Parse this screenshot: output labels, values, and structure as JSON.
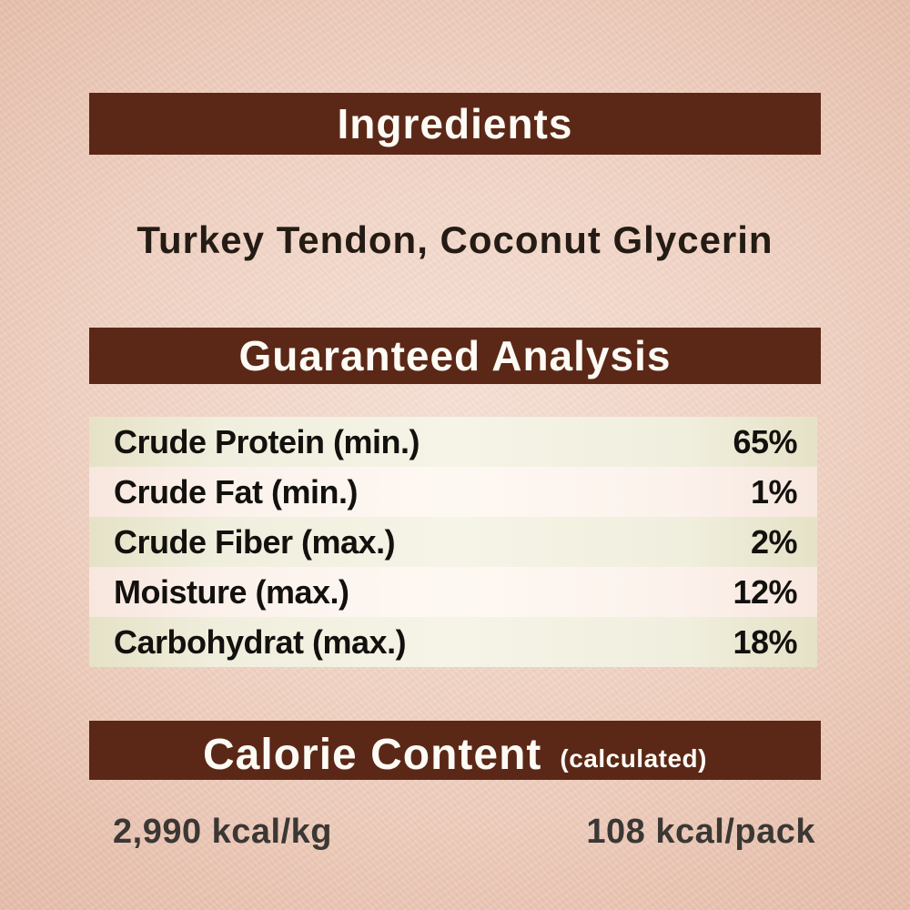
{
  "label": {
    "ingredients": {
      "title": "Ingredients",
      "text": "Turkey Tendon, Coconut Glycerin"
    },
    "guaranteed_analysis": {
      "title": "Guaranteed Analysis",
      "rows": [
        {
          "label": "Crude Protein (min.)",
          "value": "65%"
        },
        {
          "label": "Crude Fat (min.)",
          "value": "1%"
        },
        {
          "label": "Crude Fiber (max.)",
          "value": "2%"
        },
        {
          "label": "Moisture (max.)",
          "value": "12%"
        },
        {
          "label": "Carbohydrat (max.)",
          "value": "18%"
        }
      ]
    },
    "calorie_content": {
      "title": "Calorie Content",
      "note": "(calculated)",
      "per_kg": "2,990 kcal/kg",
      "per_pack": "108 kcal/pack"
    }
  },
  "colors": {
    "header_bar": "#5b2817",
    "header_text": "#fdfbf5",
    "row_green": "#ece9d4",
    "row_light": "#fdf5ef",
    "background": "#eecbba",
    "body_text": "#241c14",
    "value_text": "#13110e",
    "calorie_text": "#3b3734"
  }
}
